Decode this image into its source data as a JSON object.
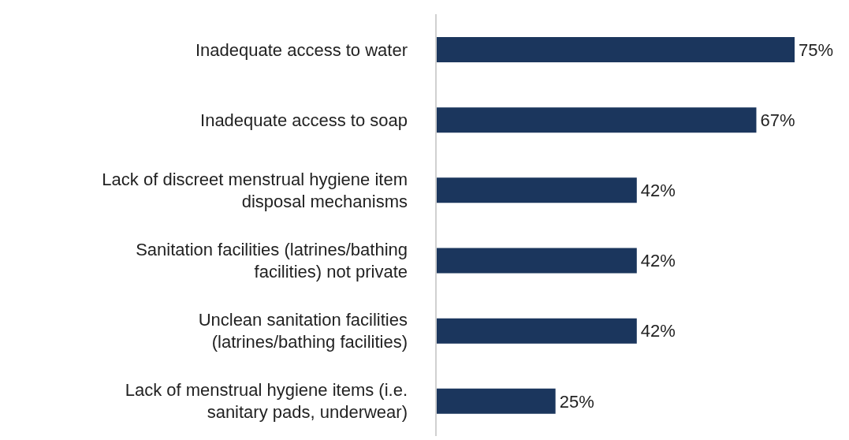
{
  "chart_data": {
    "type": "bar",
    "orientation": "horizontal",
    "categories": [
      "Inadequate access to water",
      "Inadequate access to soap",
      "Lack of discreet menstrual hygiene item disposal mechanisms",
      "Sanitation facilities (latrines/bathing facilities) not private",
      "Unclean sanitation facilities (latrines/bathing facilities)",
      "Lack of menstrual hygiene items (i.e. sanitary pads, underwear)"
    ],
    "values": [
      75,
      67,
      42,
      42,
      42,
      25
    ],
    "value_labels": [
      "75%",
      "67%",
      "42%",
      "42%",
      "42%",
      "25%"
    ],
    "color": "#1b365d"
  }
}
